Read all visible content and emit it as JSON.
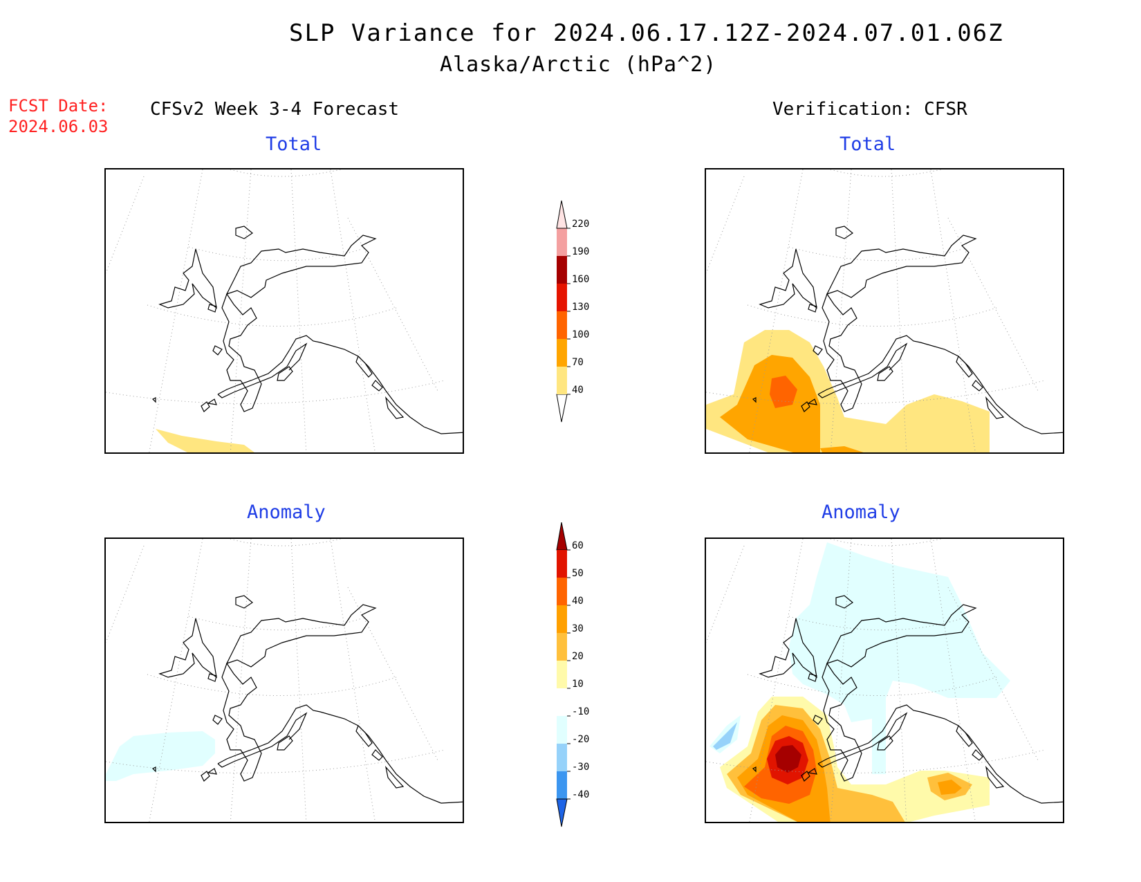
{
  "header": {
    "title": "SLP Variance for 2024.06.17.12Z-2024.07.01.06Z",
    "subtitle": "Alaska/Arctic (hPa^2)"
  },
  "fcst": {
    "label": "FCST Date:",
    "date": "2024.06.03"
  },
  "columns": {
    "left_title": "CFSv2 Week 3-4 Forecast",
    "right_title": "Verification: CFSR"
  },
  "panels": {
    "fcst_total": {
      "label": "Total"
    },
    "verif_total": {
      "label": "Total"
    },
    "fcst_anomaly": {
      "label": "Anomaly"
    },
    "verif_anomaly": {
      "label": "Anomaly"
    }
  },
  "total_colorbar": {
    "ticks": [
      "40",
      "70",
      "100",
      "130",
      "160",
      "190",
      "220"
    ],
    "colors": [
      "#ffe680",
      "#ffa500",
      "#ff6400",
      "#e51400",
      "#a50000",
      "#f4a0a0",
      "#ffe4e4"
    ]
  },
  "anomaly_colorbar": {
    "ticks": [
      "-40",
      "-30",
      "-20",
      "-10",
      "10",
      "20",
      "30",
      "40",
      "50",
      "60"
    ],
    "colors": [
      "#1e64e6",
      "#3c96f0",
      "#96d2fa",
      "#e1ffff",
      "#ffffff",
      "#fffaaa",
      "#ffc03c",
      "#ffa000",
      "#ff6400",
      "#e11400",
      "#a50000"
    ]
  }
}
